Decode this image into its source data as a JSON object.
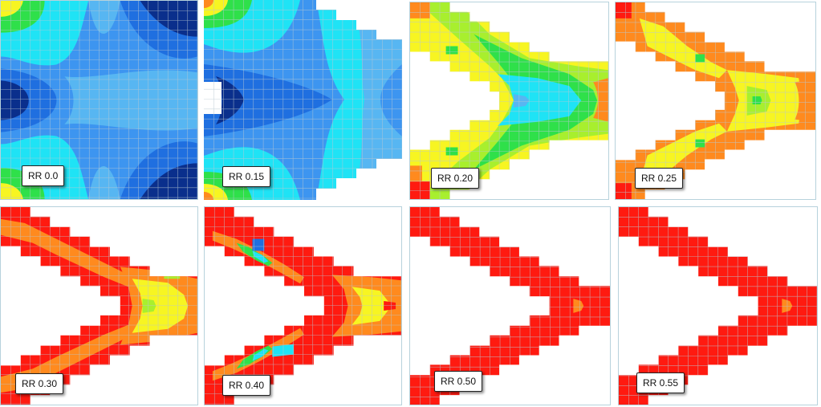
{
  "palette": {
    "dark_blue": "#0a2f8c",
    "blue": "#1f6fe0",
    "mid_blue": "#3d95f0",
    "light_blue": "#57b6f2",
    "cyan": "#1fe3f5",
    "green": "#2fe04a",
    "lime": "#a8ef2e",
    "yellow": "#f7f522",
    "orange": "#ff8a1e",
    "red": "#ff1a10",
    "grid": "#b9c9d3"
  },
  "panels": [
    {
      "label": "RR 0.0"
    },
    {
      "label": "RR 0.15"
    },
    {
      "label": "RR 0.20"
    },
    {
      "label": "RR 0.25"
    },
    {
      "label": "RR 0.30"
    },
    {
      "label": "RR 0.40"
    },
    {
      "label": "RR 0.50"
    },
    {
      "label": "RR 0.55"
    }
  ]
}
